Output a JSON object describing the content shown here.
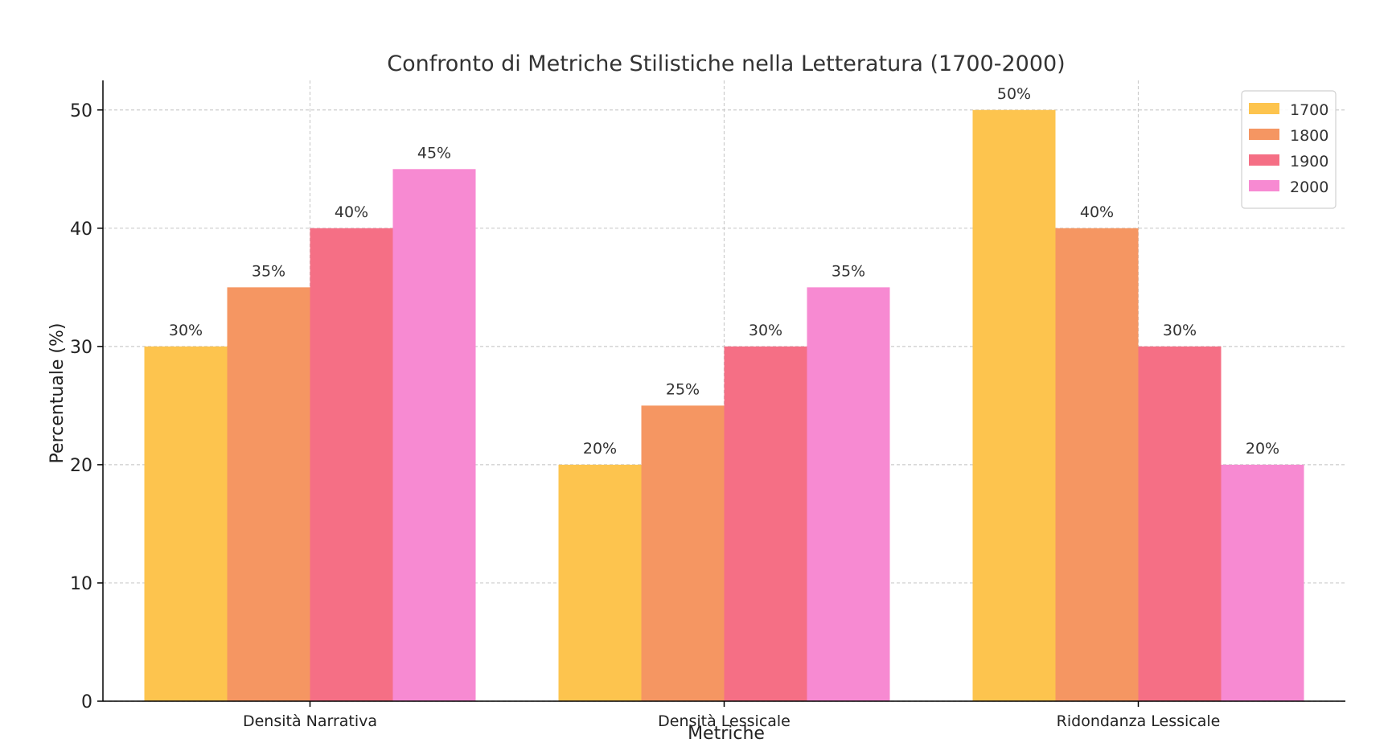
{
  "chart_data": {
    "type": "bar",
    "title": "Confronto di Metriche Stilistiche nella Letteratura (1700-2000)",
    "xlabel": "Metriche",
    "ylabel": "Percentuale (%)",
    "categories": [
      "Densità Narrativa",
      "Densità Lessicale",
      "Ridondanza Lessicale"
    ],
    "series": [
      {
        "name": "1700",
        "color": "#FDC44E",
        "values": [
          30,
          20,
          50
        ]
      },
      {
        "name": "1800",
        "color": "#F59662",
        "values": [
          35,
          25,
          40
        ]
      },
      {
        "name": "1900",
        "color": "#F56F85",
        "values": [
          40,
          30,
          30
        ]
      },
      {
        "name": "2000",
        "color": "#F78AD2",
        "values": [
          45,
          35,
          20
        ]
      }
    ],
    "value_suffix": "%",
    "ylim": [
      0,
      52.5
    ],
    "yticks": [
      0,
      10,
      20,
      30,
      40,
      50
    ],
    "grid": true,
    "legend_position": "top-right"
  }
}
